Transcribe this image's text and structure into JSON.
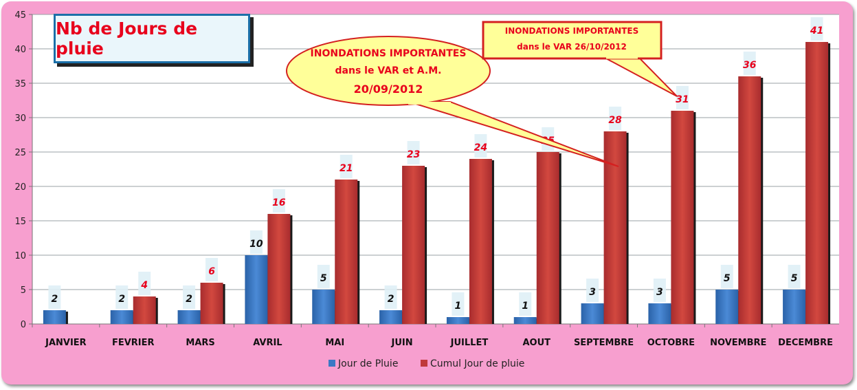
{
  "chart_data": {
    "type": "bar",
    "title": "Nb de Jours de pluie",
    "categories": [
      "JANVIER",
      "FEVRIER",
      "MARS",
      "AVRIL",
      "MAI",
      "JUIN",
      "JUILLET",
      "AOUT",
      "SEPTEMBRE",
      "OCTOBRE",
      "NOVEMBRE",
      "DECEMBRE"
    ],
    "series": [
      {
        "name": "Jour de Pluie",
        "color": "#3b78c4",
        "values": [
          2,
          2,
          2,
          10,
          5,
          2,
          1,
          1,
          3,
          3,
          5,
          5
        ]
      },
      {
        "name": "Cumul Jour de pluie",
        "color": "#c0393b",
        "values": [
          null,
          4,
          6,
          16,
          21,
          23,
          24,
          25,
          28,
          31,
          36,
          41
        ]
      }
    ],
    "ylim": [
      0,
      45
    ],
    "yticks": [
      0,
      5,
      10,
      15,
      20,
      25,
      30,
      35,
      40,
      45
    ],
    "grid": true,
    "legend_position": "bottom",
    "annotations": [
      {
        "lines": [
          "INONDATIONS IMPORTANTES",
          "dans le VAR et A.M.",
          "20/09/2012"
        ],
        "points_to": "SEPTEMBRE"
      },
      {
        "lines": [
          "INONDATIONS IMPORTANTES",
          "dans le VAR  26/10/2012"
        ],
        "points_to": "OCTOBRE"
      }
    ]
  },
  "colors": {
    "background": "#f79fcf",
    "plot_area": "#ffffff",
    "accent_text": "#e8001c",
    "title_border": "#1b6fa8"
  }
}
